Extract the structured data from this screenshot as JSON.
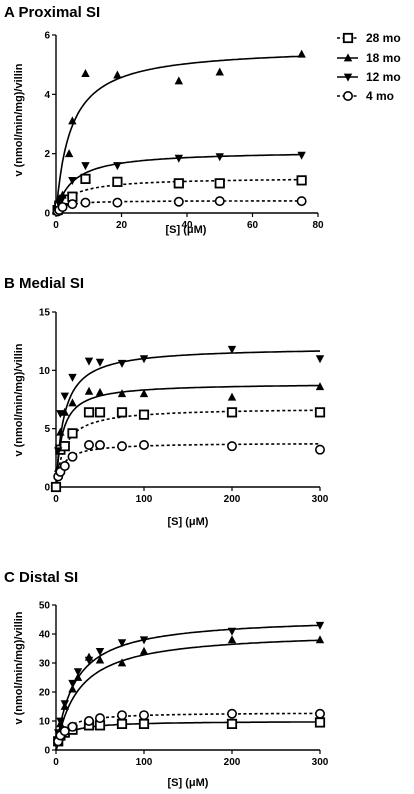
{
  "chart_data": [
    {
      "type": "scatter",
      "title": "A  Proximal SI",
      "xlabel": "[S] (μM)",
      "ylabel": "v (nmol/min/mg)/villin",
      "xlim": [
        0,
        80
      ],
      "ylim": [
        0,
        6
      ],
      "xticks": [
        0,
        20,
        40,
        60,
        80
      ],
      "yticks": [
        0,
        2,
        4,
        6
      ],
      "legend": {
        "placement": "right",
        "entries": [
          {
            "label": "28 mo",
            "marker": "square",
            "line": "dashed"
          },
          {
            "label": "18 mo",
            "marker": "triangle-up",
            "line": "solid"
          },
          {
            "label": "12 mo",
            "marker": "triangle-down",
            "line": "solid"
          },
          {
            "label": "4 mo",
            "marker": "circle",
            "line": "dashed"
          }
        ]
      },
      "series": [
        {
          "name": "28 mo",
          "marker": "square",
          "line": "dashed",
          "points": [
            [
              0.5,
              0.1
            ],
            [
              1,
              0.25
            ],
            [
              2,
              0.4
            ],
            [
              3,
              0.45
            ],
            [
              5,
              0.55
            ],
            [
              9,
              1.15
            ],
            [
              18.75,
              1.05
            ],
            [
              37.5,
              1.0
            ],
            [
              50,
              1.0
            ],
            [
              75,
              1.1
            ]
          ],
          "fit": {
            "vmax": 1.2,
            "km": 5
          }
        },
        {
          "name": "18 mo",
          "marker": "triangle-up",
          "line": "solid",
          "points": [
            [
              1,
              0.45
            ],
            [
              2,
              0.6
            ],
            [
              4,
              2.0
            ],
            [
              5,
              3.1
            ],
            [
              9,
              4.7
            ],
            [
              18.75,
              4.65
            ],
            [
              37.5,
              4.45
            ],
            [
              50,
              4.75
            ],
            [
              75,
              5.35
            ]
          ],
          "fit": {
            "vmax": 5.6,
            "km": 4.5
          }
        },
        {
          "name": "12 mo",
          "marker": "triangle-down",
          "line": "solid",
          "points": [
            [
              1,
              0.3
            ],
            [
              2,
              0.5
            ],
            [
              5,
              1.1
            ],
            [
              9,
              1.6
            ],
            [
              18.75,
              1.6
            ],
            [
              37.5,
              1.85
            ],
            [
              50,
              1.9
            ],
            [
              75,
              1.95
            ]
          ],
          "fit": {
            "vmax": 2.1,
            "km": 5
          }
        },
        {
          "name": "4 mo",
          "marker": "circle",
          "line": "dashed",
          "points": [
            [
              0.5,
              0.05
            ],
            [
              1,
              0.1
            ],
            [
              2,
              0.2
            ],
            [
              5,
              0.3
            ],
            [
              9,
              0.35
            ],
            [
              18.75,
              0.35
            ],
            [
              37.5,
              0.38
            ],
            [
              50,
              0.4
            ],
            [
              75,
              0.4
            ]
          ],
          "fit": {
            "vmax": 0.42,
            "km": 2
          }
        }
      ]
    },
    {
      "type": "scatter",
      "title": "B  Medial SI",
      "xlabel": "[S] (μM)",
      "ylabel": "v (nmol/min/mg)/villin",
      "xlim": [
        0,
        300
      ],
      "ylim": [
        0,
        15
      ],
      "xticks": [
        0,
        100,
        200,
        300
      ],
      "yticks": [
        0,
        5,
        10,
        15
      ],
      "series": [
        {
          "name": "28 mo",
          "marker": "square",
          "line": "dashed",
          "points": [
            [
              0,
              0
            ],
            [
              5,
              3.2
            ],
            [
              10,
              3.5
            ],
            [
              18.75,
              4.6
            ],
            [
              37.5,
              6.4
            ],
            [
              50,
              6.4
            ],
            [
              75,
              6.4
            ],
            [
              100,
              6.2
            ],
            [
              200,
              6.4
            ],
            [
              300,
              6.4
            ]
          ],
          "fit": {
            "vmax": 6.8,
            "km": 10
          }
        },
        {
          "name": "18 mo",
          "marker": "triangle-up",
          "line": "solid",
          "points": [
            [
              2.5,
              1.6
            ],
            [
              5,
              4.7
            ],
            [
              10,
              6.4
            ],
            [
              18.75,
              7.2
            ],
            [
              37.5,
              8.2
            ],
            [
              50,
              8.1
            ],
            [
              75,
              8.0
            ],
            [
              100,
              8.0
            ],
            [
              200,
              7.7
            ],
            [
              300,
              8.6
            ]
          ],
          "fit": {
            "vmax": 8.9,
            "km": 7
          }
        },
        {
          "name": "12 mo",
          "marker": "triangle-down",
          "line": "solid",
          "points": [
            [
              2.5,
              3.1
            ],
            [
              5,
              6.3
            ],
            [
              10,
              7.8
            ],
            [
              18.75,
              9.4
            ],
            [
              37.5,
              10.8
            ],
            [
              50,
              10.7
            ],
            [
              75,
              10.6
            ],
            [
              100,
              11.0
            ],
            [
              200,
              11.8
            ],
            [
              300,
              11.0
            ]
          ],
          "fit": {
            "vmax": 12.0,
            "km": 9
          }
        },
        {
          "name": "4 mo",
          "marker": "circle",
          "line": "dashed",
          "points": [
            [
              2.5,
              0.9
            ],
            [
              5,
              1.3
            ],
            [
              10,
              1.8
            ],
            [
              18.75,
              2.6
            ],
            [
              37.5,
              3.6
            ],
            [
              50,
              3.6
            ],
            [
              75,
              3.5
            ],
            [
              100,
              3.6
            ],
            [
              200,
              3.5
            ],
            [
              300,
              3.2
            ]
          ],
          "fit": {
            "vmax": 3.8,
            "km": 8
          }
        }
      ]
    },
    {
      "type": "scatter",
      "title": "C  Distal SI",
      "xlabel": "[S] (μM)",
      "ylabel": "v (nmol/min/mg)/villin",
      "xlim": [
        0,
        300
      ],
      "ylim": [
        0,
        50
      ],
      "xticks": [
        0,
        100,
        200,
        300
      ],
      "yticks": [
        0,
        10,
        20,
        30,
        40,
        50
      ],
      "series": [
        {
          "name": "28 mo",
          "marker": "square",
          "line": "solid",
          "points": [
            [
              2.5,
              3
            ],
            [
              5,
              5
            ],
            [
              10,
              6
            ],
            [
              18.75,
              7
            ],
            [
              37.5,
              8.5
            ],
            [
              50,
              8.5
            ],
            [
              75,
              9
            ],
            [
              100,
              9
            ],
            [
              200,
              9
            ],
            [
              300,
              9.5
            ]
          ],
          "fit": {
            "vmax": 10,
            "km": 10
          }
        },
        {
          "name": "18 mo",
          "marker": "triangle-up",
          "line": "solid",
          "points": [
            [
              2.5,
              5
            ],
            [
              5,
              9
            ],
            [
              10,
              15
            ],
            [
              18.75,
              21
            ],
            [
              25,
              25
            ],
            [
              37.5,
              32
            ],
            [
              50,
              31
            ],
            [
              75,
              30
            ],
            [
              100,
              34
            ],
            [
              200,
              38
            ],
            [
              300,
              38
            ]
          ],
          "fit": {
            "vmax": 41,
            "km": 25
          }
        },
        {
          "name": "12 mo",
          "marker": "triangle-down",
          "line": "solid",
          "points": [
            [
              2.5,
              6
            ],
            [
              5,
              10
            ],
            [
              10,
              16
            ],
            [
              18.75,
              23
            ],
            [
              25,
              27
            ],
            [
              37.5,
              31
            ],
            [
              50,
              34
            ],
            [
              75,
              37
            ],
            [
              100,
              38
            ],
            [
              200,
              41
            ],
            [
              300,
              43
            ]
          ],
          "fit": {
            "vmax": 46,
            "km": 21
          }
        },
        {
          "name": "4 mo",
          "marker": "circle",
          "line": "dashed",
          "points": [
            [
              2.5,
              3
            ],
            [
              5,
              5
            ],
            [
              10,
              6.5
            ],
            [
              18.75,
              8
            ],
            [
              37.5,
              10
            ],
            [
              50,
              11
            ],
            [
              75,
              12
            ],
            [
              100,
              12
            ],
            [
              200,
              12.5
            ],
            [
              300,
              12.5
            ]
          ],
          "fit": {
            "vmax": 13,
            "km": 9
          }
        }
      ]
    }
  ]
}
